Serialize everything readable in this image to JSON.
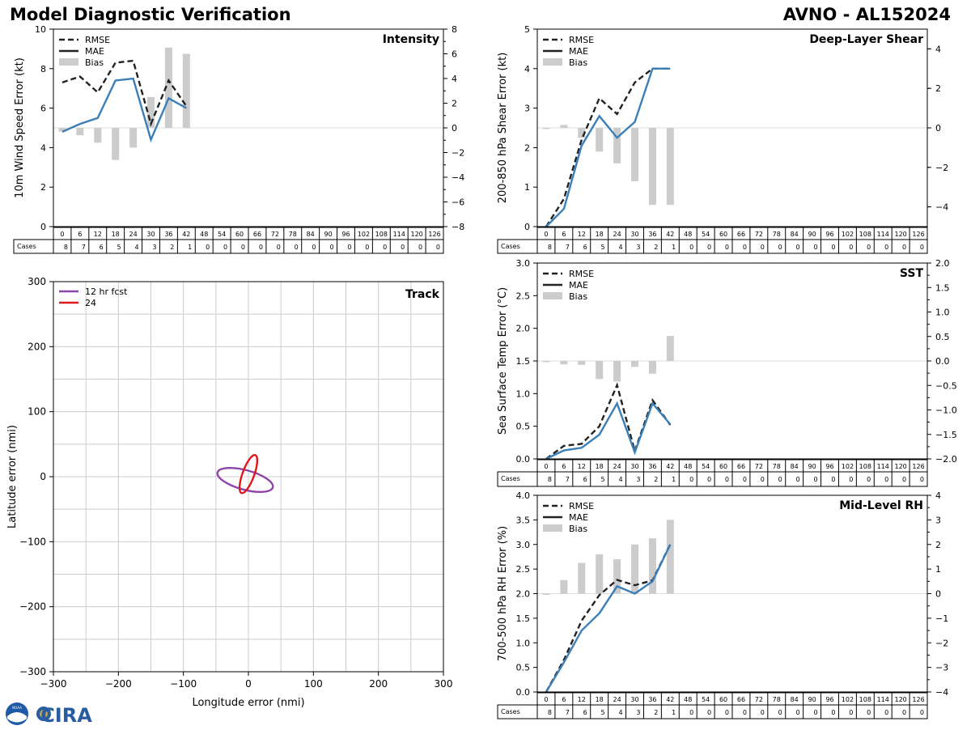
{
  "header": {
    "title": "Model Diagnostic Verification",
    "model_storm": "AVNO - AL152024"
  },
  "logos": {
    "noaa_text": "NOAA",
    "cira_text": "CIRA"
  },
  "colors": {
    "rmse": "#222222",
    "mae": "#3a7fb8",
    "bias": "#cccccc",
    "track_12": "#8e44a8",
    "track_24": "#e0171c",
    "grid": "#cccccc"
  },
  "chart_data": [
    {
      "id": "intensity",
      "type": "line",
      "title": "Intensity",
      "ylabel": "10m Wind Speed Error (kt)",
      "ylim": [
        0,
        10
      ],
      "y2lim": [
        -8,
        8
      ],
      "yticks": [
        0,
        2,
        4,
        6,
        8,
        10
      ],
      "y2ticks": [
        -8,
        -6,
        -4,
        -2,
        0,
        2,
        4,
        6,
        8
      ],
      "x": [
        0,
        6,
        12,
        18,
        24,
        30,
        36,
        42
      ],
      "rmse": [
        7.3,
        7.6,
        6.8,
        8.3,
        8.4,
        5.2,
        7.4,
        6.1
      ],
      "mae": [
        4.8,
        5.2,
        5.5,
        7.4,
        7.5,
        4.4,
        6.5,
        6.0
      ],
      "bias": [
        -0.3,
        -0.6,
        -1.2,
        -2.6,
        -1.6,
        2.5,
        6.5,
        6.0
      ],
      "legend": [
        "RMSE",
        "MAE",
        "Bias"
      ]
    },
    {
      "id": "shear",
      "type": "line",
      "title": "Deep-Layer Shear",
      "ylabel": "200-850 hPa Shear Error (kt)",
      "ylim": [
        0,
        5
      ],
      "y2lim": [
        -5,
        5
      ],
      "yticks": [
        0,
        1,
        2,
        3,
        4,
        5
      ],
      "y2ticks": [
        -4,
        -2,
        0,
        2,
        4
      ],
      "x": [
        0,
        6,
        12,
        18,
        24,
        30,
        36,
        42
      ],
      "rmse": [
        0.0,
        0.7,
        2.2,
        3.25,
        2.85,
        3.65,
        4.0,
        4.0
      ],
      "mae": [
        0.0,
        0.45,
        2.05,
        2.8,
        2.25,
        2.65,
        4.0,
        4.0
      ],
      "bias": [
        0.0,
        0.15,
        -0.5,
        -1.2,
        -1.8,
        -2.7,
        -3.9,
        -3.9
      ],
      "legend": [
        "RMSE",
        "MAE",
        "Bias"
      ]
    },
    {
      "id": "sst",
      "type": "line",
      "title": "SST",
      "ylabel": "Sea Surface Temp Error (°C)",
      "ylim": [
        0,
        3
      ],
      "y2lim": [
        -2,
        2
      ],
      "yticks": [
        0.0,
        0.5,
        1.0,
        1.5,
        2.0,
        2.5,
        3.0
      ],
      "y2ticks": [
        -2.0,
        -1.5,
        -1.0,
        -0.5,
        0.0,
        0.5,
        1.0,
        1.5,
        2.0
      ],
      "x": [
        0,
        6,
        12,
        18,
        24,
        30,
        36,
        42
      ],
      "rmse": [
        0.0,
        0.2,
        0.23,
        0.5,
        1.13,
        0.12,
        0.9,
        0.52
      ],
      "mae": [
        0.0,
        0.13,
        0.17,
        0.37,
        0.85,
        0.1,
        0.85,
        0.53
      ],
      "bias": [
        0.0,
        -0.07,
        -0.08,
        -0.37,
        -0.42,
        -0.12,
        -0.26,
        0.51
      ],
      "legend": [
        "RMSE",
        "MAE",
        "Bias"
      ]
    },
    {
      "id": "rh",
      "type": "line",
      "title": "Mid-Level RH",
      "ylabel": "700-500 hPa RH Error (%)",
      "ylim": [
        0,
        4
      ],
      "y2lim": [
        -4,
        4
      ],
      "yticks": [
        0.0,
        0.5,
        1.0,
        1.5,
        2.0,
        2.5,
        3.0,
        3.5,
        4.0
      ],
      "y2ticks": [
        -4,
        -3,
        -2,
        -1,
        0,
        1,
        2,
        3,
        4
      ],
      "x": [
        0,
        6,
        12,
        18,
        24,
        30,
        36,
        42
      ],
      "rmse": [
        0.0,
        0.65,
        1.45,
        1.97,
        2.28,
        2.17,
        2.27,
        3.0
      ],
      "mae": [
        0.0,
        0.6,
        1.25,
        1.6,
        2.15,
        2.0,
        2.25,
        3.0
      ],
      "bias": [
        0.0,
        0.55,
        1.25,
        1.6,
        1.4,
        2.0,
        2.25,
        3.0
      ],
      "legend": [
        "RMSE",
        "MAE",
        "Bias"
      ]
    },
    {
      "id": "track",
      "type": "scatter",
      "title": "Track",
      "xlabel": "Longitude error (nmi)",
      "ylabel": "Latitude error (nmi)",
      "xlim": [
        -300,
        300
      ],
      "ylim": [
        -300,
        300
      ],
      "ticks": [
        -300,
        -200,
        -100,
        0,
        100,
        200,
        300
      ],
      "ellipses": [
        {
          "label": "12 hr fcst",
          "cx": -5,
          "cy": -5,
          "semi_major": 44,
          "semi_minor": 15,
          "angle_deg": -15
        },
        {
          "label": "24",
          "cx": 0,
          "cy": 4,
          "semi_major": 31,
          "semi_minor": 9,
          "angle_deg": 70
        }
      ]
    }
  ],
  "cases_table": {
    "label": "Cases",
    "hours": [
      0,
      6,
      12,
      18,
      24,
      30,
      36,
      42,
      48,
      54,
      60,
      66,
      72,
      78,
      84,
      90,
      96,
      102,
      108,
      114,
      120,
      126
    ],
    "counts": [
      8,
      7,
      6,
      5,
      4,
      3,
      2,
      1,
      0,
      0,
      0,
      0,
      0,
      0,
      0,
      0,
      0,
      0,
      0,
      0,
      0,
      0
    ]
  }
}
